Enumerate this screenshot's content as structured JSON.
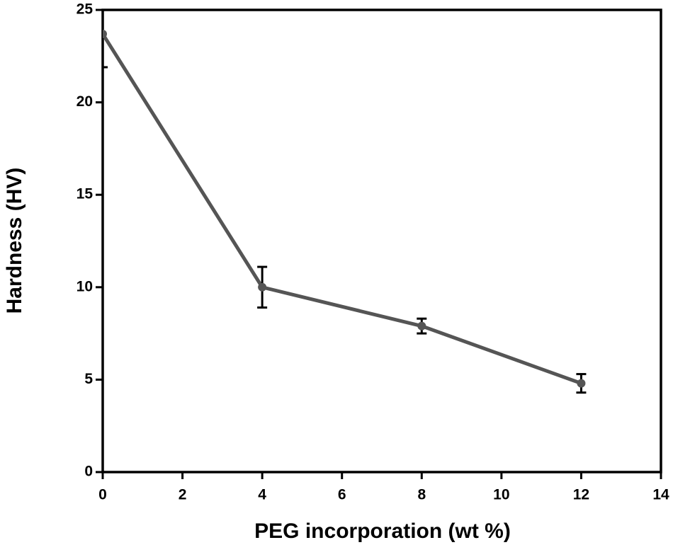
{
  "chart_data": {
    "type": "line",
    "x_label": "PEG incorporation (wt %)",
    "y_label": "Hardness (HV)",
    "x": [
      0,
      4,
      8,
      12
    ],
    "series": [
      {
        "name": "Hardness",
        "color": "#555555",
        "values": [
          23.7,
          10.0,
          7.9,
          4.8
        ],
        "errors": [
          1.8,
          1.1,
          0.4,
          0.5
        ]
      }
    ],
    "xlim": [
      0,
      14
    ],
    "xticks": [
      0,
      2,
      4,
      6,
      8,
      10,
      12,
      14
    ],
    "ylim": [
      0,
      25
    ],
    "yticks": [
      0,
      5,
      10,
      15,
      20,
      25
    ]
  }
}
